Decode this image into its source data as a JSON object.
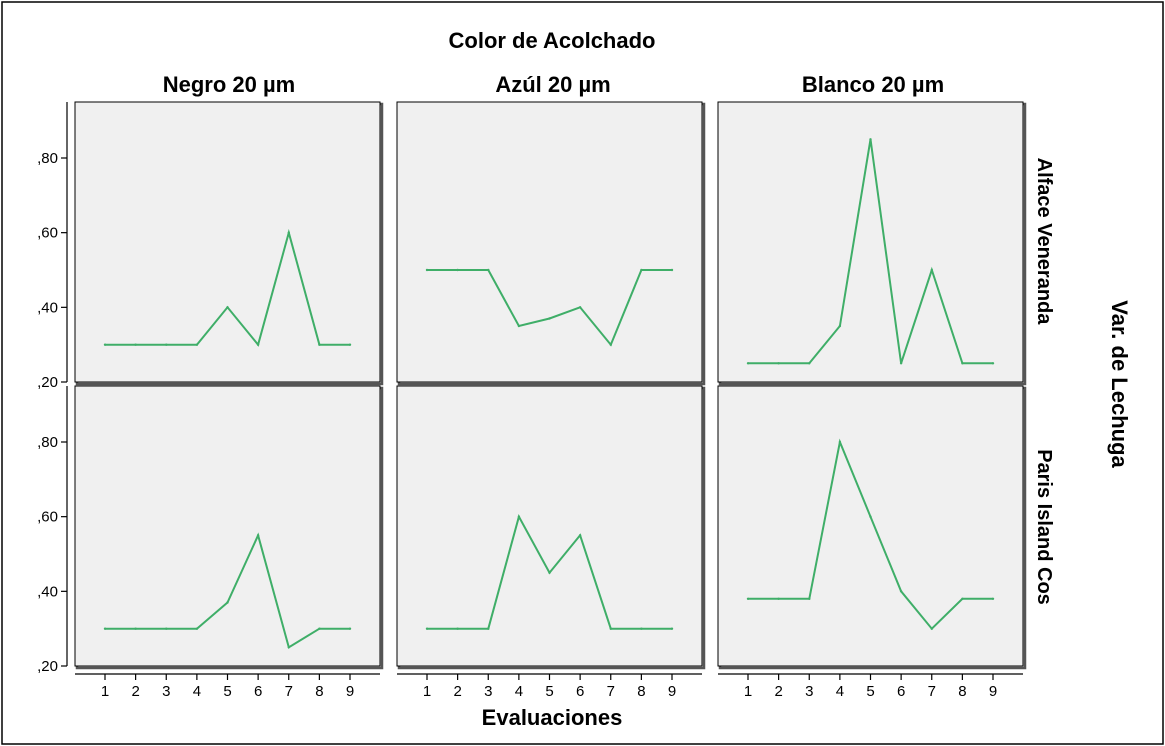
{
  "chart_data": {
    "type": "line",
    "title": "Color de Acolchado",
    "xlabel": "Evaluaciones",
    "row_group_label": "Var. de Lechuga",
    "columns": [
      "Negro 20 µm",
      "Azúl 20 µm",
      "Blanco 20 µm"
    ],
    "rows": [
      "Alface Veneranda",
      "Paris Island Cos"
    ],
    "x": [
      1,
      2,
      3,
      4,
      5,
      6,
      7,
      8,
      9
    ],
    "x_tick_labels": [
      "1",
      "2",
      "3",
      "4",
      "5",
      "6",
      "7",
      "8",
      "9"
    ],
    "ylim": [
      0.2,
      0.95
    ],
    "y_ticks": [
      0.2,
      0.4,
      0.6,
      0.8
    ],
    "y_tick_labels": [
      ",20",
      ",40",
      ",60",
      ",80"
    ],
    "grid": false,
    "line_color": "#3fae68",
    "panel_background": "#f0f0f0",
    "panels": [
      {
        "row": 0,
        "col": 0,
        "values": [
          0.3,
          0.3,
          0.3,
          0.3,
          0.4,
          0.3,
          0.6,
          0.3,
          0.3
        ]
      },
      {
        "row": 0,
        "col": 1,
        "values": [
          0.5,
          0.5,
          0.5,
          0.35,
          0.37,
          0.4,
          0.3,
          0.5,
          0.5
        ]
      },
      {
        "row": 0,
        "col": 2,
        "values": [
          0.25,
          0.25,
          0.25,
          0.35,
          0.85,
          0.25,
          0.5,
          0.25,
          0.25
        ]
      },
      {
        "row": 1,
        "col": 0,
        "values": [
          0.3,
          0.3,
          0.3,
          0.3,
          0.37,
          0.55,
          0.25,
          0.3,
          0.3
        ]
      },
      {
        "row": 1,
        "col": 1,
        "values": [
          0.3,
          0.3,
          0.3,
          0.6,
          0.45,
          0.55,
          0.3,
          0.3,
          0.3
        ]
      },
      {
        "row": 1,
        "col": 2,
        "values": [
          0.38,
          0.38,
          0.38,
          0.8,
          0.6,
          0.4,
          0.3,
          0.38,
          0.38
        ]
      }
    ]
  }
}
